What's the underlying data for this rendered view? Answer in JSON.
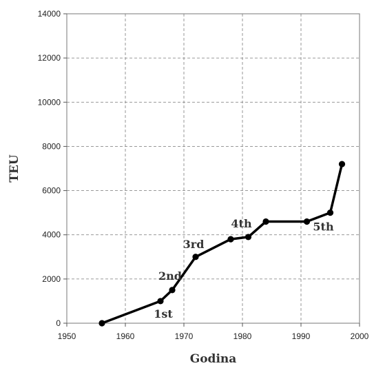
{
  "chart_data": {
    "type": "line",
    "title": "",
    "xlabel": "Godina",
    "ylabel": "TEU",
    "xlim": [
      1950,
      2000
    ],
    "ylim": [
      0,
      14000
    ],
    "xticks": [
      "1950",
      "1960",
      "1970",
      "1980",
      "1990",
      "2000"
    ],
    "yticks": [
      "0",
      "2000",
      "4000",
      "6000",
      "8000",
      "10000",
      "12000",
      "14000"
    ],
    "grid": true,
    "legend": "none",
    "series": [
      {
        "x": [
          1956,
          1966,
          1968,
          1972,
          1978,
          1981,
          1984,
          1991,
          1995,
          1997
        ],
        "y": [
          0,
          1000,
          1500,
          3000,
          3800,
          3900,
          4600,
          4600,
          5000,
          7200
        ]
      }
    ],
    "annotations": [
      {
        "text": "1st",
        "x": 1966,
        "y": 1000
      },
      {
        "text": "2nd",
        "x": 1968,
        "y": 1500
      },
      {
        "text": "3rd",
        "x": 1972,
        "y": 3000
      },
      {
        "text": "4th",
        "x": 1981,
        "y": 3900
      },
      {
        "text": "5th",
        "x": 1995,
        "y": 5000
      }
    ],
    "colors": {
      "line": "#000000",
      "grid": "#8a8a8a"
    }
  }
}
